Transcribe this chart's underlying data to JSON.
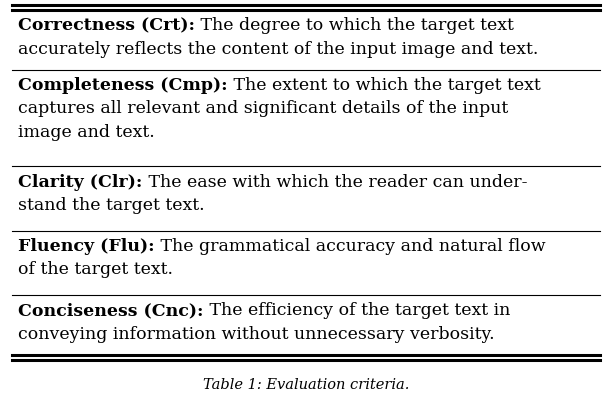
{
  "title": "Table 1: Evaluation criteria.",
  "title_fontsize": 10.5,
  "background_color": "#ffffff",
  "text_color": "#000000",
  "rows": [
    {
      "bold_part": "Correctness (Crt):",
      "first_line": " The degree to which the target text",
      "extra_lines": [
        "accurately reflects the content of the input image and text."
      ]
    },
    {
      "bold_part": "Completeness (Cmp):",
      "first_line": " The extent to which the target text",
      "extra_lines": [
        "captures all relevant and significant details of the input",
        "image and text."
      ]
    },
    {
      "bold_part": "Clarity (Clr):",
      "first_line": " The ease with which the reader can under-",
      "extra_lines": [
        "stand the target text."
      ]
    },
    {
      "bold_part": "Fluency (Flu):",
      "first_line": " The grammatical accuracy and natural flow",
      "extra_lines": [
        "of the target text."
      ]
    },
    {
      "bold_part": "Conciseness (Cnc):",
      "first_line": " The efficiency of the target text in",
      "extra_lines": [
        "conveying information without unnecessary verbosity."
      ]
    }
  ],
  "font_size": 12.5,
  "line_color": "#000000",
  "figsize": [
    6.12,
    4.1
  ],
  "dpi": 100,
  "row_lines": [
    2,
    3,
    2,
    2,
    2
  ]
}
